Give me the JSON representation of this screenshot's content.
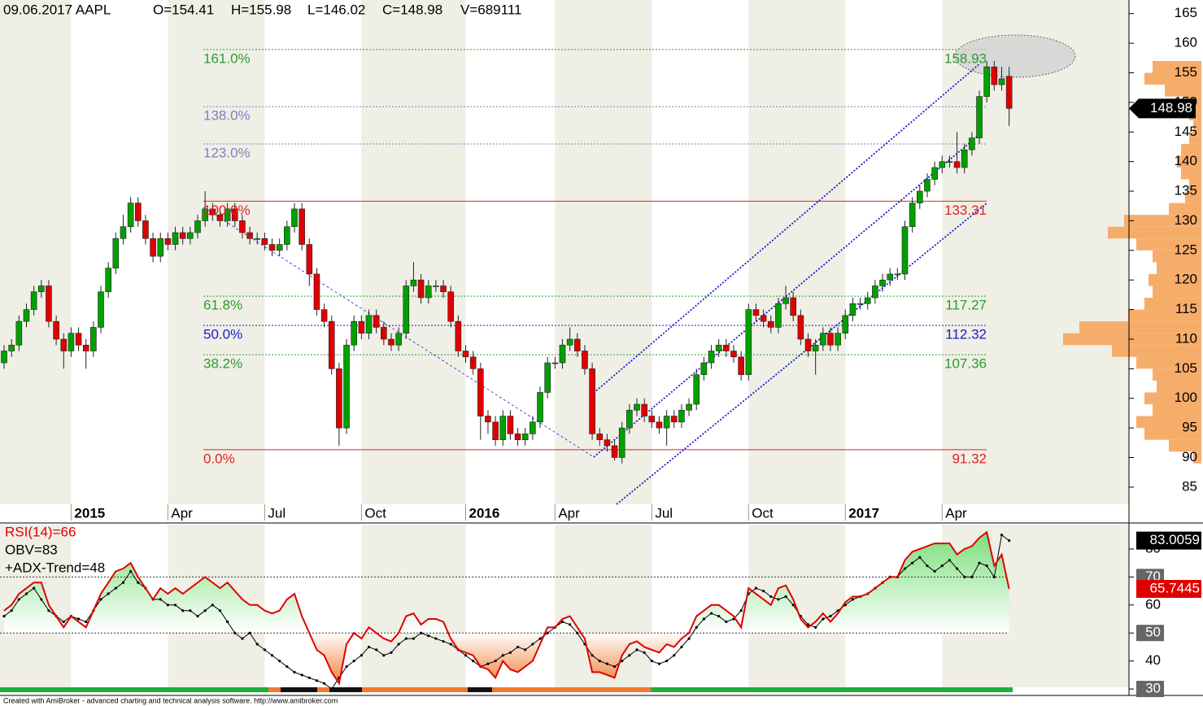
{
  "header": [
    "09.06.2017 AAPL",
    "O=154.41",
    "H=155.98",
    "L=146.02",
    "C=148.98",
    "V=689111"
  ],
  "chart_data": [
    {
      "type": "candlestick",
      "xlim": [
        -0.55,
        151.1
      ],
      "xticks": [
        {
          "value": 9,
          "label": "2015"
        },
        {
          "value": 22,
          "label": "Apr"
        },
        {
          "value": 35,
          "label": "Jul"
        },
        {
          "value": 48,
          "label": "Oct"
        },
        {
          "value": 62,
          "label": "2016"
        },
        {
          "value": 74,
          "label": "Apr"
        },
        {
          "value": 87,
          "label": "Jul"
        },
        {
          "value": 100,
          "label": "Oct"
        },
        {
          "value": 113,
          "label": "2017"
        },
        {
          "value": 126,
          "label": "Apr"
        }
      ],
      "ylim": [
        82.1,
        167.3
      ],
      "yticks": [
        85,
        90,
        95,
        100,
        105,
        110,
        115,
        120,
        125,
        130,
        135,
        140,
        145,
        150,
        155,
        160,
        165
      ],
      "up_color": "#00a000",
      "down_color": "#e00000",
      "open": [
        106,
        108,
        109,
        113,
        115,
        118,
        119,
        113,
        110,
        108,
        111,
        109,
        108,
        112,
        118,
        122,
        127,
        129,
        133,
        130,
        127,
        124,
        127,
        126,
        128,
        127,
        128,
        130,
        132,
        131,
        130,
        132,
        130,
        128,
        127,
        127,
        126,
        125,
        126,
        129,
        132,
        126,
        121,
        115,
        113,
        105,
        95,
        109,
        113,
        111,
        114,
        112,
        110,
        109,
        111,
        119,
        120,
        117,
        119,
        119,
        118,
        113,
        108,
        107,
        105,
        97,
        96,
        93,
        97,
        94,
        93,
        94,
        96,
        101,
        106,
        106,
        109,
        110,
        108,
        105,
        94,
        93,
        92,
        90,
        95,
        98,
        99,
        97,
        96,
        95,
        97,
        96,
        98,
        99,
        104,
        106,
        108,
        109,
        108,
        107,
        104,
        115,
        114,
        113,
        112,
        116,
        117,
        114,
        110,
        108,
        109,
        111,
        109,
        111,
        114,
        116,
        116,
        117,
        119,
        120,
        121,
        121,
        129,
        133,
        135,
        137,
        139,
        140,
        140,
        139,
        142,
        144,
        151,
        156,
        153,
        154.41
      ],
      "high": [
        109,
        110,
        114,
        116,
        119,
        120,
        120,
        114,
        111,
        112,
        112,
        110,
        113,
        119,
        123,
        128,
        131,
        134,
        134,
        131,
        128,
        128,
        128,
        129,
        129,
        129,
        131,
        135,
        133,
        132,
        133,
        133,
        131,
        129,
        128,
        128,
        127,
        127,
        130,
        133,
        133,
        127,
        122,
        116,
        114,
        106,
        110,
        114,
        114,
        115,
        115,
        113,
        111,
        112,
        120,
        123,
        121,
        120,
        120,
        120,
        119,
        114,
        109,
        108,
        106,
        98,
        97,
        98,
        98,
        95,
        95,
        97,
        102,
        107,
        107,
        110,
        112,
        111,
        109,
        106,
        95,
        94,
        93,
        96,
        99,
        100,
        100,
        98,
        97,
        98,
        98,
        99,
        100,
        105,
        107,
        109,
        110,
        110,
        109,
        108,
        116,
        116,
        115,
        114,
        117,
        119,
        118,
        115,
        111,
        110,
        112,
        112,
        112,
        115,
        117,
        117,
        118,
        120,
        121,
        122,
        122,
        130,
        134,
        136,
        138,
        140,
        141,
        141,
        145,
        143,
        145,
        152,
        157,
        157,
        156,
        155.98
      ],
      "low": [
        105,
        107,
        108,
        112,
        114,
        117,
        112,
        109,
        105,
        107,
        108,
        105,
        107,
        111,
        117,
        121,
        126,
        128,
        129,
        126,
        123,
        123,
        125,
        125,
        126,
        126,
        127,
        129,
        130,
        129,
        129,
        129,
        127,
        126,
        126,
        125,
        124,
        124,
        125,
        128,
        125,
        119,
        114,
        112,
        104,
        92,
        94,
        108,
        110,
        110,
        111,
        109,
        108,
        108,
        110,
        118,
        116,
        116,
        118,
        117,
        112,
        107,
        106,
        104,
        93,
        94,
        92,
        92,
        93,
        92,
        92,
        93,
        95,
        100,
        105,
        105,
        108,
        107,
        104,
        93,
        92,
        91,
        89.5,
        89,
        94,
        97,
        96,
        95,
        94,
        92,
        95,
        95,
        97,
        98,
        103,
        105,
        107,
        107,
        106,
        103,
        103,
        113,
        112,
        111,
        111,
        115,
        113,
        109,
        107,
        104,
        108,
        108,
        108,
        110,
        113,
        115,
        115,
        116,
        118,
        119,
        120,
        120,
        128,
        132,
        134,
        136,
        138,
        139,
        138,
        138,
        141,
        143,
        150,
        152,
        152,
        146.02
      ],
      "close": [
        108,
        109,
        113,
        115,
        118,
        119,
        113,
        110,
        108,
        111,
        109,
        108,
        112,
        118,
        122,
        127,
        129,
        133,
        130,
        127,
        124,
        127,
        126,
        128,
        127,
        128,
        130,
        132,
        131,
        130,
        132,
        130,
        128,
        127,
        127,
        126,
        125,
        126,
        129,
        132,
        126,
        121,
        115,
        113,
        105,
        95,
        109,
        113,
        111,
        114,
        112,
        110,
        109,
        111,
        119,
        120,
        117,
        119,
        119,
        118,
        113,
        108,
        107,
        105,
        97,
        96,
        93,
        97,
        94,
        93,
        94,
        96,
        101,
        106,
        106,
        109,
        110,
        108,
        105,
        94,
        93,
        92,
        90,
        95,
        98,
        99,
        97,
        96,
        95,
        97,
        96,
        98,
        99,
        104,
        106,
        108,
        109,
        108,
        107,
        104,
        115,
        114,
        113,
        112,
        116,
        117,
        114,
        110,
        108,
        109,
        111,
        109,
        111,
        114,
        116,
        116,
        117,
        119,
        120,
        121,
        121,
        129,
        133,
        135,
        137,
        139,
        140,
        140,
        139,
        142,
        144,
        151,
        156,
        153,
        154,
        148.98
      ],
      "fibonacci": [
        {
          "label": "161.0%",
          "value": 158.93,
          "color": "#2e9a2e",
          "value_printed": true
        },
        {
          "label": "138.0%",
          "value": 149.28,
          "color": "#7a80c0",
          "value_printed": false
        },
        {
          "label": "123.0%",
          "value": 142.98,
          "color": "#7a80c0",
          "value_printed": false
        },
        {
          "label": "100.0%",
          "value": 133.31,
          "color": "#e02020",
          "value_printed": true
        },
        {
          "label": "61.8%",
          "value": 117.27,
          "color": "#2e9a2e",
          "value_printed": true
        },
        {
          "label": "50.0%",
          "value": 112.32,
          "color": "#1a1ad0",
          "value_printed": true
        },
        {
          "label": "38.2%",
          "value": 107.36,
          "color": "#2e9a2e",
          "value_printed": true
        },
        {
          "label": "0.0%",
          "value": 91.32,
          "color": "#e02020",
          "value_printed": true
        }
      ],
      "volume_profile": {
        "color": "#f7ad6a",
        "prices": [
          90,
          92,
          94,
          96,
          98,
          100,
          102,
          104,
          106,
          108,
          110,
          112,
          114,
          116,
          118,
          120,
          122,
          124,
          126,
          128,
          130,
          132,
          134,
          136,
          138,
          140,
          142,
          144,
          146,
          148,
          150,
          152,
          154,
          156
        ],
        "values": [
          10,
          40,
          70,
          80,
          60,
          70,
          55,
          60,
          80,
          110,
          170,
          150,
          90,
          70,
          60,
          65,
          55,
          60,
          80,
          115,
          95,
          40,
          20,
          15,
          25,
          30,
          25,
          15,
          10,
          15,
          20,
          45,
          70,
          60
        ]
      }
    },
    {
      "type": "line",
      "xlim": [
        -0.55,
        151.1
      ],
      "ylim": [
        27.7,
        88.7
      ],
      "yticks": [
        30,
        40,
        50,
        60,
        70,
        80
      ],
      "boxed_yticks": [
        30,
        50,
        70
      ],
      "reference_lines": [
        70,
        50
      ],
      "series": [
        {
          "name": "RSI(14)=66",
          "color": "#e00000",
          "values": [
            58,
            60,
            64,
            66,
            68,
            68,
            60,
            56,
            52,
            56,
            54,
            52,
            58,
            64,
            68,
            72,
            73,
            75,
            70,
            66,
            62,
            66,
            64,
            66,
            64,
            66,
            68,
            70,
            68,
            66,
            68,
            65,
            62,
            60,
            60,
            58,
            57,
            58,
            62,
            64,
            56,
            50,
            44,
            42,
            36,
            32,
            46,
            50,
            48,
            52,
            50,
            48,
            47,
            50,
            56,
            57,
            53,
            55,
            55,
            54,
            48,
            44,
            43,
            42,
            38,
            37,
            34,
            40,
            37,
            36,
            38,
            40,
            46,
            52,
            52,
            55,
            56,
            52,
            48,
            36,
            36,
            35,
            34,
            42,
            46,
            47,
            45,
            44,
            43,
            46,
            45,
            48,
            50,
            56,
            58,
            60,
            60,
            58,
            56,
            52,
            66,
            64,
            62,
            60,
            66,
            67,
            62,
            55,
            52,
            54,
            57,
            54,
            57,
            61,
            63,
            63,
            64,
            66,
            68,
            70,
            70,
            76,
            79,
            80,
            81,
            82,
            82,
            82,
            78,
            80,
            81,
            84,
            86,
            74,
            78,
            65.7445
          ]
        },
        {
          "name": "OBV=83",
          "color": "#000000",
          "values": [
            56,
            58,
            62,
            64,
            66,
            62,
            58,
            56,
            54,
            56,
            55,
            54,
            58,
            62,
            64,
            66,
            68,
            72,
            68,
            66,
            62,
            62,
            60,
            60,
            58,
            58,
            56,
            58,
            60,
            58,
            54,
            50,
            48,
            50,
            46,
            44,
            42,
            40,
            38,
            36,
            35,
            34,
            33,
            32,
            30,
            34,
            38,
            40,
            42,
            45,
            44,
            42,
            43,
            46,
            48,
            48,
            50,
            49,
            48,
            47,
            46,
            44,
            42,
            40,
            38,
            39,
            40,
            42,
            43,
            45,
            44,
            46,
            48,
            50,
            52,
            54,
            53,
            50,
            46,
            42,
            40,
            39,
            38,
            40,
            42,
            44,
            43,
            40,
            39,
            40,
            42,
            45,
            48,
            52,
            55,
            57,
            56,
            54,
            55,
            58,
            64,
            66,
            65,
            63,
            62,
            63,
            60,
            56,
            53,
            52,
            55,
            56,
            58,
            60,
            62,
            63,
            64,
            66,
            68,
            70,
            70,
            73,
            75,
            77,
            74,
            72,
            74,
            76,
            73,
            70,
            70,
            75,
            74,
            70,
            85,
            83.0059
          ]
        }
      ],
      "trend_label": "+ADX-Trend=48"
    }
  ],
  "footer": "Created with AmiBroker - advanced charting and technical analysis software. http://www.amibroker.com"
}
